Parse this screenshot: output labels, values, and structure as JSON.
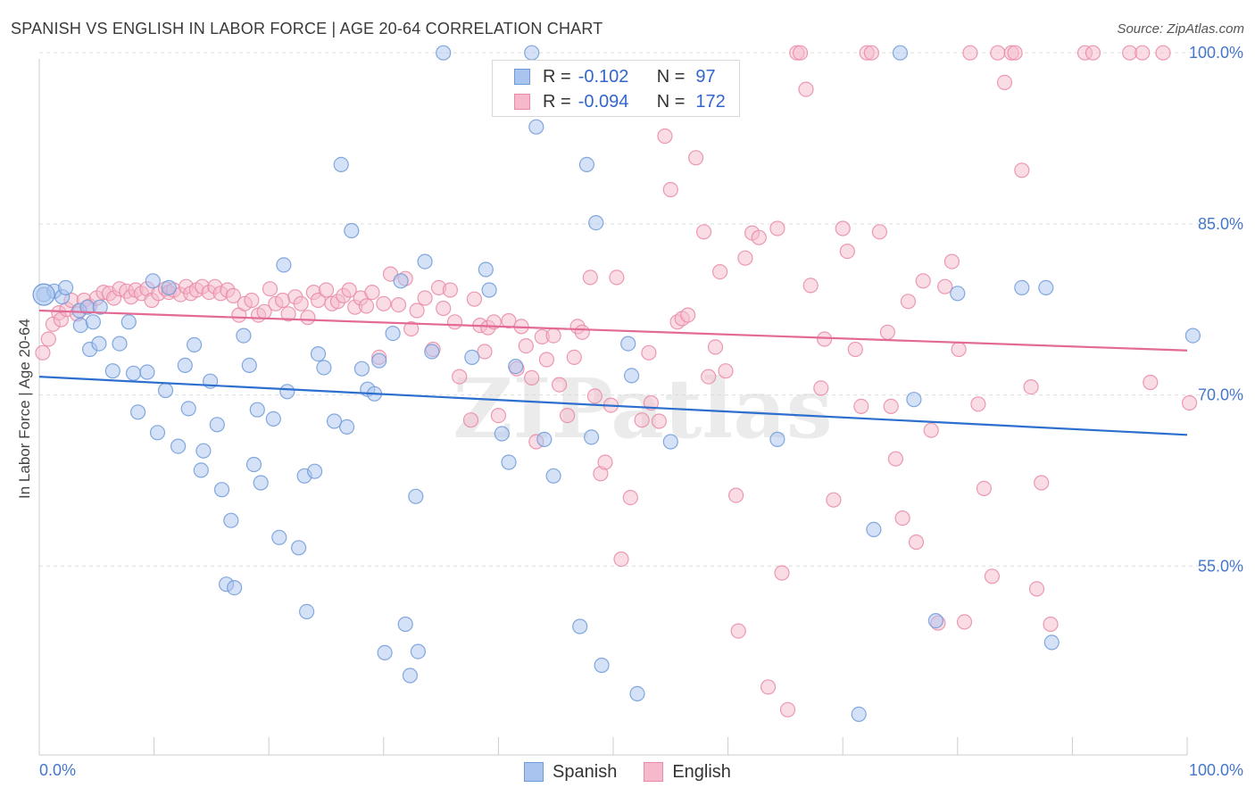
{
  "title": "SPANISH VS ENGLISH IN LABOR FORCE | AGE 20-64 CORRELATION CHART",
  "source": "Source: ZipAtlas.com",
  "watermark": "ZIPatlas",
  "colors": {
    "spanish_fill": "#a9c4ef",
    "spanish_stroke": "#6f9ad8",
    "spanish_line": "#2d6fce",
    "english_fill": "#f5b9cb",
    "english_stroke": "#e88aa6",
    "english_line": "#e26a94",
    "axis_label": "#4477cc",
    "grid": "#dddddd"
  },
  "legend_top": {
    "rows": [
      {
        "series": "Spanish",
        "r_label": "R =",
        "r_value": "-0.102",
        "n_label": "N =",
        "n_value": "97"
      },
      {
        "series": "English",
        "r_label": "R =",
        "r_value": "-0.094",
        "n_label": "N =",
        "n_value": "172"
      }
    ]
  },
  "legend_bottom": [
    "Spanish",
    "English"
  ],
  "chart_data": {
    "type": "scatter",
    "title": "SPANISH VS ENGLISH IN LABOR FORCE | AGE 20-64 CORRELATION CHART",
    "xlabel": "",
    "ylabel": "In Labor Force | Age 20-64",
    "xlim": [
      0,
      100
    ],
    "ylim": [
      40,
      101.5
    ],
    "x_tick_labels": [
      "0.0%",
      "100.0%"
    ],
    "y_ticks": [
      55,
      70,
      85,
      100
    ],
    "y_tick_labels": [
      "55.0%",
      "70.0%",
      "85.0%",
      "100.0%"
    ],
    "grid": true,
    "legend_position": "bottom",
    "series": [
      {
        "name": "Spanish",
        "r": -0.102,
        "n": 97,
        "trend": [
          [
            0,
            71.6
          ],
          [
            100,
            66.5
          ]
        ],
        "points": [
          [
            0.4,
            78.8
          ],
          [
            1.3,
            79.1
          ],
          [
            2.0,
            78.6
          ],
          [
            2.3,
            79.4
          ],
          [
            3.5,
            77.4
          ],
          [
            3.6,
            76.1
          ],
          [
            4.2,
            77.7
          ],
          [
            4.4,
            74.0
          ],
          [
            4.7,
            76.4
          ],
          [
            5.3,
            77.7
          ],
          [
            5.2,
            74.5
          ],
          [
            6.4,
            72.1
          ],
          [
            7.0,
            74.5
          ],
          [
            7.8,
            76.4
          ],
          [
            8.2,
            71.9
          ],
          [
            8.6,
            68.5
          ],
          [
            9.4,
            72.0
          ],
          [
            9.9,
            80.0
          ],
          [
            10.3,
            66.7
          ],
          [
            11.0,
            70.4
          ],
          [
            11.3,
            79.4
          ],
          [
            12.1,
            65.5
          ],
          [
            12.7,
            72.6
          ],
          [
            13.0,
            68.8
          ],
          [
            13.5,
            74.4
          ],
          [
            14.1,
            63.4
          ],
          [
            14.3,
            65.1
          ],
          [
            14.9,
            71.2
          ],
          [
            15.5,
            67.4
          ],
          [
            15.9,
            61.7
          ],
          [
            16.3,
            53.4
          ],
          [
            16.7,
            59.0
          ],
          [
            17.0,
            53.1
          ],
          [
            17.8,
            75.2
          ],
          [
            18.3,
            72.6
          ],
          [
            18.7,
            63.9
          ],
          [
            19.0,
            68.7
          ],
          [
            19.3,
            62.3
          ],
          [
            20.4,
            67.9
          ],
          [
            20.9,
            57.5
          ],
          [
            21.3,
            81.4
          ],
          [
            21.6,
            70.3
          ],
          [
            22.6,
            56.6
          ],
          [
            23.1,
            62.9
          ],
          [
            23.3,
            51.0
          ],
          [
            24.0,
            63.3
          ],
          [
            24.3,
            73.6
          ],
          [
            24.8,
            72.4
          ],
          [
            25.7,
            67.7
          ],
          [
            26.3,
            90.2
          ],
          [
            26.8,
            67.2
          ],
          [
            27.2,
            84.4
          ],
          [
            28.1,
            72.3
          ],
          [
            28.6,
            70.5
          ],
          [
            29.2,
            70.1
          ],
          [
            29.6,
            73.0
          ],
          [
            30.1,
            47.4
          ],
          [
            30.8,
            75.4
          ],
          [
            31.5,
            80.0
          ],
          [
            31.9,
            49.9
          ],
          [
            32.3,
            45.4
          ],
          [
            32.8,
            61.1
          ],
          [
            33.0,
            47.5
          ],
          [
            33.6,
            81.7
          ],
          [
            34.2,
            73.8
          ],
          [
            35.2,
            100.0
          ],
          [
            37.7,
            73.3
          ],
          [
            38.9,
            81.0
          ],
          [
            39.2,
            79.2
          ],
          [
            40.3,
            66.6
          ],
          [
            40.9,
            64.1
          ],
          [
            41.5,
            72.5
          ],
          [
            42.9,
            100.0
          ],
          [
            43.3,
            93.5
          ],
          [
            44.0,
            66.1
          ],
          [
            44.8,
            62.9
          ],
          [
            47.1,
            49.7
          ],
          [
            47.7,
            90.2
          ],
          [
            48.1,
            66.3
          ],
          [
            48.5,
            85.1
          ],
          [
            49.0,
            46.3
          ],
          [
            51.3,
            74.5
          ],
          [
            51.6,
            71.7
          ],
          [
            52.1,
            43.8
          ],
          [
            55.0,
            65.9
          ],
          [
            64.3,
            66.1
          ],
          [
            71.4,
            42.0
          ],
          [
            72.7,
            58.2
          ],
          [
            75.0,
            100.0
          ],
          [
            76.2,
            69.6
          ],
          [
            78.1,
            50.2
          ],
          [
            80.0,
            78.9
          ],
          [
            85.6,
            79.4
          ],
          [
            87.7,
            79.4
          ],
          [
            88.2,
            48.3
          ],
          [
            100.5,
            75.2
          ]
        ]
      },
      {
        "name": "English",
        "r": -0.094,
        "n": 172,
        "trend": [
          [
            0,
            77.4
          ],
          [
            100,
            73.9
          ]
        ],
        "points": [
          [
            0.3,
            73.7
          ],
          [
            0.8,
            74.9
          ],
          [
            1.2,
            76.2
          ],
          [
            1.7,
            77.2
          ],
          [
            1.9,
            76.6
          ],
          [
            2.4,
            77.5
          ],
          [
            2.8,
            78.3
          ],
          [
            3.3,
            77.1
          ],
          [
            3.9,
            78.3
          ],
          [
            4.4,
            77.8
          ],
          [
            5.0,
            78.5
          ],
          [
            5.6,
            79.0
          ],
          [
            6.1,
            78.9
          ],
          [
            6.5,
            78.5
          ],
          [
            7.0,
            79.3
          ],
          [
            7.6,
            79.1
          ],
          [
            8.0,
            78.6
          ],
          [
            8.4,
            79.2
          ],
          [
            8.9,
            78.9
          ],
          [
            9.4,
            79.3
          ],
          [
            9.8,
            78.3
          ],
          [
            10.4,
            78.9
          ],
          [
            11.0,
            79.3
          ],
          [
            11.3,
            79.0
          ],
          [
            11.7,
            79.2
          ],
          [
            12.3,
            78.8
          ],
          [
            12.8,
            79.5
          ],
          [
            13.2,
            78.9
          ],
          [
            13.7,
            79.2
          ],
          [
            14.2,
            79.5
          ],
          [
            14.8,
            79.0
          ],
          [
            15.3,
            79.5
          ],
          [
            15.8,
            78.9
          ],
          [
            16.4,
            79.2
          ],
          [
            16.9,
            78.7
          ],
          [
            17.4,
            77.0
          ],
          [
            17.9,
            78.0
          ],
          [
            18.5,
            78.3
          ],
          [
            19.1,
            77.0
          ],
          [
            19.6,
            77.3
          ],
          [
            20.1,
            79.3
          ],
          [
            20.6,
            78.0
          ],
          [
            21.2,
            78.3
          ],
          [
            21.7,
            77.1
          ],
          [
            22.3,
            78.6
          ],
          [
            22.8,
            78.0
          ],
          [
            23.4,
            76.8
          ],
          [
            23.9,
            79.0
          ],
          [
            24.3,
            78.3
          ],
          [
            25.0,
            79.2
          ],
          [
            25.5,
            78.0
          ],
          [
            26.0,
            78.2
          ],
          [
            26.5,
            78.7
          ],
          [
            27.0,
            79.2
          ],
          [
            27.5,
            77.7
          ],
          [
            28.0,
            78.5
          ],
          [
            28.5,
            77.8
          ],
          [
            29.0,
            79.0
          ],
          [
            29.6,
            73.3
          ],
          [
            30.0,
            78.0
          ],
          [
            30.6,
            80.6
          ],
          [
            31.3,
            77.9
          ],
          [
            31.9,
            80.2
          ],
          [
            32.4,
            75.8
          ],
          [
            32.9,
            77.4
          ],
          [
            33.6,
            78.5
          ],
          [
            34.3,
            74.0
          ],
          [
            34.8,
            79.4
          ],
          [
            35.2,
            77.6
          ],
          [
            35.8,
            79.2
          ],
          [
            36.2,
            76.4
          ],
          [
            36.6,
            71.6
          ],
          [
            37.6,
            67.8
          ],
          [
            37.9,
            78.4
          ],
          [
            38.4,
            76.1
          ],
          [
            38.8,
            73.8
          ],
          [
            39.1,
            75.9
          ],
          [
            39.6,
            76.4
          ],
          [
            40.0,
            68.2
          ],
          [
            40.9,
            76.5
          ],
          [
            41.6,
            72.3
          ],
          [
            42.0,
            76.0
          ],
          [
            42.4,
            74.3
          ],
          [
            42.9,
            71.5
          ],
          [
            43.3,
            65.9
          ],
          [
            43.8,
            75.1
          ],
          [
            44.2,
            73.1
          ],
          [
            44.8,
            75.2
          ],
          [
            45.3,
            70.9
          ],
          [
            46.0,
            68.2
          ],
          [
            46.6,
            73.3
          ],
          [
            46.9,
            76.0
          ],
          [
            47.3,
            75.5
          ],
          [
            48.0,
            80.3
          ],
          [
            48.4,
            69.9
          ],
          [
            48.9,
            63.1
          ],
          [
            49.3,
            64.1
          ],
          [
            49.8,
            69.1
          ],
          [
            50.3,
            80.3
          ],
          [
            50.7,
            55.6
          ],
          [
            51.5,
            61.0
          ],
          [
            52.5,
            67.8
          ],
          [
            53.1,
            73.7
          ],
          [
            53.3,
            69.3
          ],
          [
            54.0,
            67.7
          ],
          [
            54.5,
            92.7
          ],
          [
            55.0,
            88.0
          ],
          [
            55.6,
            76.4
          ],
          [
            56.0,
            76.7
          ],
          [
            56.5,
            77.0
          ],
          [
            57.2,
            90.8
          ],
          [
            57.9,
            84.3
          ],
          [
            58.3,
            71.6
          ],
          [
            58.9,
            74.2
          ],
          [
            59.3,
            80.8
          ],
          [
            59.8,
            72.1
          ],
          [
            60.7,
            61.2
          ],
          [
            60.9,
            49.3
          ],
          [
            61.5,
            82.0
          ],
          [
            62.1,
            84.2
          ],
          [
            62.7,
            83.8
          ],
          [
            63.5,
            44.4
          ],
          [
            64.3,
            84.6
          ],
          [
            64.7,
            54.4
          ],
          [
            65.2,
            42.4
          ],
          [
            66.0,
            100.0
          ],
          [
            66.3,
            100.0
          ],
          [
            66.8,
            96.8
          ],
          [
            67.2,
            79.6
          ],
          [
            68.1,
            70.6
          ],
          [
            68.4,
            74.9
          ],
          [
            69.2,
            60.8
          ],
          [
            70.0,
            84.6
          ],
          [
            70.4,
            82.6
          ],
          [
            71.1,
            74.0
          ],
          [
            71.6,
            69.0
          ],
          [
            72.1,
            100.0
          ],
          [
            72.5,
            100.0
          ],
          [
            73.2,
            84.3
          ],
          [
            73.9,
            75.5
          ],
          [
            74.2,
            69.0
          ],
          [
            74.6,
            64.4
          ],
          [
            75.2,
            59.2
          ],
          [
            75.7,
            78.2
          ],
          [
            76.4,
            57.1
          ],
          [
            77.0,
            80.0
          ],
          [
            77.7,
            66.9
          ],
          [
            78.3,
            50.0
          ],
          [
            78.9,
            79.5
          ],
          [
            79.5,
            81.7
          ],
          [
            80.1,
            74.0
          ],
          [
            80.6,
            50.1
          ],
          [
            81.1,
            100.0
          ],
          [
            81.8,
            69.2
          ],
          [
            82.3,
            61.8
          ],
          [
            83.0,
            54.1
          ],
          [
            83.5,
            100.0
          ],
          [
            84.1,
            97.4
          ],
          [
            84.7,
            100.0
          ],
          [
            85.0,
            100.0
          ],
          [
            85.6,
            89.7
          ],
          [
            86.4,
            70.7
          ],
          [
            86.9,
            53.0
          ],
          [
            87.3,
            62.3
          ],
          [
            88.1,
            49.9
          ],
          [
            91.1,
            100.0
          ],
          [
            91.8,
            100.0
          ],
          [
            95.0,
            100.0
          ],
          [
            96.1,
            100.0
          ],
          [
            96.8,
            71.1
          ],
          [
            97.9,
            100.0
          ],
          [
            100.2,
            69.3
          ]
        ]
      }
    ]
  }
}
